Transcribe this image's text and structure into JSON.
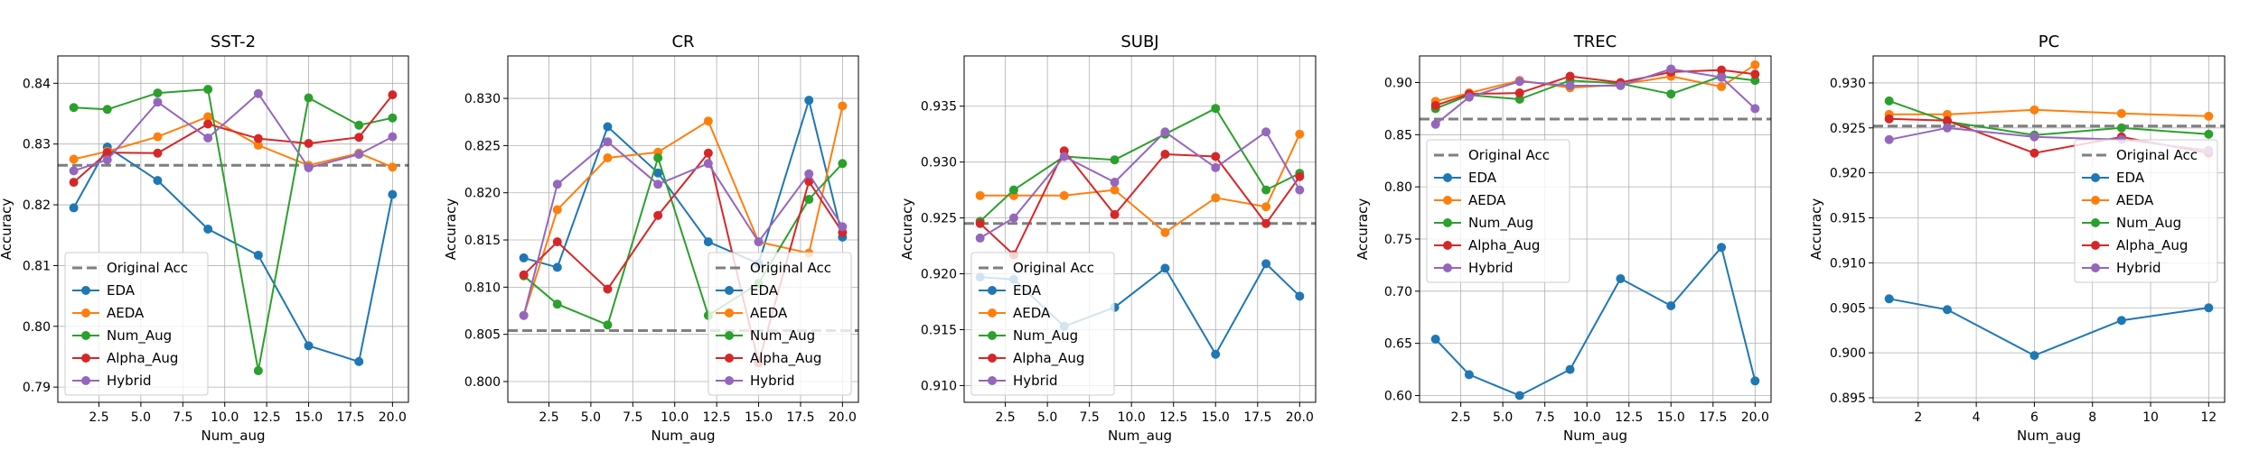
{
  "chart_data": [
    {
      "type": "line",
      "title": "SST-2",
      "xlabel": "Num_aug",
      "ylabel": "Accuracy",
      "xlim": [
        0.05,
        20.95
      ],
      "ylim": [
        0.7875,
        0.8445
      ],
      "xticks": [
        2.5,
        5.0,
        7.5,
        10.0,
        12.5,
        15.0,
        17.5,
        20.0
      ],
      "xtick_labels": [
        "2.5",
        "5.0",
        "7.5",
        "10.0",
        "12.5",
        "15.0",
        "17.5",
        "20.0"
      ],
      "yticks": [
        0.79,
        0.8,
        0.81,
        0.82,
        0.83,
        0.84
      ],
      "ytick_labels": [
        "0.79",
        "0.80",
        "0.81",
        "0.82",
        "0.83",
        "0.84"
      ],
      "x": [
        1,
        3,
        6,
        9,
        12,
        15,
        18,
        20
      ],
      "baseline": {
        "name": "Original Acc",
        "value": 0.8265
      },
      "legend_position": "lower-left",
      "grid": true,
      "series": [
        {
          "name": "EDA",
          "values": [
            0.8195,
            0.8295,
            0.824,
            0.816,
            0.8117,
            0.7968,
            0.7942,
            0.8217
          ]
        },
        {
          "name": "AEDA",
          "values": [
            0.8275,
            0.8288,
            0.8312,
            0.8345,
            0.8298,
            0.8265,
            0.8285,
            0.8262
          ]
        },
        {
          "name": "Num_Aug",
          "values": [
            0.836,
            0.8357,
            0.8384,
            0.839,
            0.7927,
            0.8376,
            0.8331,
            0.8343
          ]
        },
        {
          "name": "Alpha_Aug",
          "values": [
            0.8237,
            0.8286,
            0.8285,
            0.8333,
            0.8309,
            0.8301,
            0.8311,
            0.8381
          ]
        },
        {
          "name": "Hybrid",
          "values": [
            0.8256,
            0.8274,
            0.8369,
            0.831,
            0.8383,
            0.8261,
            0.8283,
            0.8312
          ]
        }
      ]
    },
    {
      "type": "line",
      "title": "CR",
      "xlabel": "Num_aug",
      "ylabel": "Accuracy",
      "xlim": [
        0.05,
        20.95
      ],
      "ylim": [
        0.7978,
        0.8345
      ],
      "xticks": [
        2.5,
        5.0,
        7.5,
        10.0,
        12.5,
        15.0,
        17.5,
        20.0
      ],
      "xtick_labels": [
        "2.5",
        "5.0",
        "7.5",
        "10.0",
        "12.5",
        "15.0",
        "17.5",
        "20.0"
      ],
      "yticks": [
        0.8,
        0.805,
        0.81,
        0.815,
        0.82,
        0.825,
        0.83
      ],
      "ytick_labels": [
        "0.800",
        "0.805",
        "0.810",
        "0.815",
        "0.820",
        "0.825",
        "0.830"
      ],
      "x": [
        1,
        3,
        6,
        9,
        12,
        15,
        18,
        20
      ],
      "baseline": {
        "name": "Original Acc",
        "value": 0.8054
      },
      "legend_position": "lower-right",
      "grid": true,
      "series": [
        {
          "name": "EDA",
          "values": [
            0.8131,
            0.8121,
            0.827,
            0.8221,
            0.8148,
            0.8125,
            0.8298,
            0.8153
          ]
        },
        {
          "name": "AEDA",
          "values": [
            0.807,
            0.8182,
            0.8237,
            0.8243,
            0.8276,
            0.8148,
            0.8136,
            0.8292
          ]
        },
        {
          "name": "Num_Aug",
          "values": [
            0.8112,
            0.8082,
            0.806,
            0.8237,
            0.807,
            0.8104,
            0.8193,
            0.8231
          ]
        },
        {
          "name": "Alpha_Aug",
          "values": [
            0.8113,
            0.8148,
            0.8098,
            0.8176,
            0.8242,
            0.802,
            0.8212,
            0.8158
          ]
        },
        {
          "name": "Hybrid",
          "values": [
            0.807,
            0.8209,
            0.8254,
            0.8209,
            0.8231,
            0.8148,
            0.822,
            0.8164
          ]
        }
      ]
    },
    {
      "type": "line",
      "title": "SUBJ",
      "xlabel": "Num_aug",
      "ylabel": "Accuracy",
      "xlim": [
        0.05,
        20.95
      ],
      "ylim": [
        0.9085,
        0.9395
      ],
      "xticks": [
        2.5,
        5.0,
        7.5,
        10.0,
        12.5,
        15.0,
        17.5,
        20.0
      ],
      "xtick_labels": [
        "2.5",
        "5.0",
        "7.5",
        "10.0",
        "12.5",
        "15.0",
        "17.5",
        "20.0"
      ],
      "yticks": [
        0.91,
        0.915,
        0.92,
        0.925,
        0.93,
        0.935
      ],
      "ytick_labels": [
        "0.910",
        "0.915",
        "0.920",
        "0.925",
        "0.930",
        "0.935"
      ],
      "x": [
        1,
        3,
        6,
        9,
        12,
        15,
        18,
        20
      ],
      "baseline": {
        "name": "Original Acc",
        "value": 0.9245
      },
      "legend_position": "lower-left",
      "grid": true,
      "series": [
        {
          "name": "EDA",
          "values": [
            0.9197,
            0.9195,
            0.9153,
            0.917,
            0.9205,
            0.9128,
            0.9209,
            0.918
          ]
        },
        {
          "name": "AEDA",
          "values": [
            0.927,
            0.927,
            0.927,
            0.9275,
            0.9237,
            0.9268,
            0.926,
            0.9325
          ]
        },
        {
          "name": "Num_Aug",
          "values": [
            0.9247,
            0.9275,
            0.9305,
            0.9302,
            0.9325,
            0.9348,
            0.9275,
            0.929
          ]
        },
        {
          "name": "Alpha_Aug",
          "values": [
            0.9245,
            0.9217,
            0.931,
            0.9253,
            0.9307,
            0.9305,
            0.9245,
            0.9287
          ]
        },
        {
          "name": "Hybrid",
          "values": [
            0.9232,
            0.925,
            0.9305,
            0.9282,
            0.9327,
            0.9295,
            0.9327,
            0.9275
          ]
        }
      ]
    },
    {
      "type": "line",
      "title": "TREC",
      "xlabel": "Num_aug",
      "ylabel": "Accuracy",
      "xlim": [
        0.05,
        20.95
      ],
      "ylim": [
        0.5935,
        0.9255
      ],
      "xticks": [
        2.5,
        5.0,
        7.5,
        10.0,
        12.5,
        15.0,
        17.5,
        20.0
      ],
      "xtick_labels": [
        "2.5",
        "5.0",
        "7.5",
        "10.0",
        "12.5",
        "15.0",
        "17.5",
        "20.0"
      ],
      "yticks": [
        0.6,
        0.65,
        0.7,
        0.75,
        0.8,
        0.85,
        0.9
      ],
      "ytick_labels": [
        "0.60",
        "0.65",
        "0.70",
        "0.75",
        "0.80",
        "0.85",
        "0.90"
      ],
      "x": [
        1,
        3,
        6,
        9,
        12,
        15,
        18,
        20
      ],
      "baseline": {
        "name": "Original Acc",
        "value": 0.865
      },
      "legend_position": "center-left",
      "grid": true,
      "series": [
        {
          "name": "EDA",
          "values": [
            0.654,
            0.62,
            0.6,
            0.625,
            0.712,
            0.686,
            0.742,
            0.614
          ]
        },
        {
          "name": "AEDA",
          "values": [
            0.882,
            0.89,
            0.902,
            0.895,
            0.898,
            0.906,
            0.896,
            0.917
          ]
        },
        {
          "name": "Num_Aug",
          "values": [
            0.875,
            0.888,
            0.884,
            0.902,
            0.899,
            0.889,
            0.906,
            0.902
          ]
        },
        {
          "name": "Alpha_Aug",
          "values": [
            0.878,
            0.889,
            0.89,
            0.906,
            0.9,
            0.91,
            0.912,
            0.908
          ]
        },
        {
          "name": "Hybrid",
          "values": [
            0.86,
            0.886,
            0.901,
            0.897,
            0.897,
            0.913,
            0.905,
            0.875
          ]
        }
      ]
    },
    {
      "type": "line",
      "title": "PC",
      "xlabel": "Num_aug",
      "ylabel": "Accuracy",
      "xlim": [
        0.45,
        12.55
      ],
      "ylim": [
        0.8945,
        0.933
      ],
      "xticks": [
        2,
        4,
        6,
        8,
        10,
        12
      ],
      "xtick_labels": [
        "2",
        "4",
        "6",
        "8",
        "10",
        "12"
      ],
      "yticks": [
        0.895,
        0.9,
        0.905,
        0.91,
        0.915,
        0.92,
        0.925,
        0.93
      ],
      "ytick_labels": [
        "0.895",
        "0.900",
        "0.905",
        "0.910",
        "0.915",
        "0.920",
        "0.925",
        "0.930"
      ],
      "x": [
        1,
        3,
        6,
        9,
        12
      ],
      "baseline": {
        "name": "Original Acc",
        "value": 0.9252
      },
      "legend_position": "center-right",
      "grid": true,
      "series": [
        {
          "name": "EDA",
          "values": [
            0.906,
            0.9048,
            0.8997,
            0.9036,
            0.905
          ]
        },
        {
          "name": "AEDA",
          "values": [
            0.9265,
            0.9265,
            0.927,
            0.9266,
            0.9263
          ]
        },
        {
          "name": "Num_Aug",
          "values": [
            0.928,
            0.9257,
            0.9242,
            0.925,
            0.9243
          ]
        },
        {
          "name": "Alpha_Aug",
          "values": [
            0.926,
            0.9258,
            0.9222,
            0.924,
            0.9222
          ]
        },
        {
          "name": "Hybrid",
          "values": [
            0.9237,
            0.925,
            0.924,
            0.9237,
            0.9225
          ]
        }
      ]
    }
  ],
  "colors": {
    "EDA": "#1f77b4",
    "AEDA": "#ff7f0e",
    "Num_Aug": "#2ca02c",
    "Alpha_Aug": "#d62728",
    "Hybrid": "#9467bd",
    "baseline": "#7f7f7f"
  }
}
